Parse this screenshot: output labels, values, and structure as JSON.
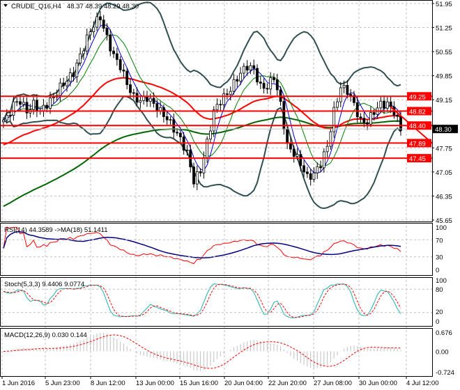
{
  "header": {
    "symbol": "CRUDE_Q16,H4",
    "ohlc": "48.37 48.39 48.29 48.30"
  },
  "colors": {
    "bull": "#000000",
    "bear": "#000000",
    "bands": "#2f4f4f",
    "fast_ma": "#0000cc",
    "mid_ma": "#008000",
    "slow_ma": "#ff0000",
    "long_ma": "#006400",
    "level": "#ff0000",
    "rsi": "#ff0000",
    "rsi_ma": "#000080",
    "stoch_main": "#20b2aa",
    "stoch_signal": "#ff0000",
    "macd_hist": "#c0c0c0",
    "macd_signal": "#ff0000"
  },
  "chart_data": [
    {
      "type": "candlestick",
      "title": "CRUDE_Q16,H4",
      "ylim": [
        45.65,
        51.95
      ],
      "y_ticks": [
        "51.95",
        "51.25",
        "50.55",
        "49.85",
        "49.15",
        "47.75",
        "47.05",
        "46.35",
        "45.65"
      ],
      "x_ticks": [
        "1 Jun 2016",
        "5 Jun 23:00",
        "8 Jun 12:00",
        "13 Jun 00:00",
        "15 Jun 16:00",
        "20 Jun 04:00",
        "22 Jun 20:00",
        "27 Jun 08:00",
        "30 Jun 00:00",
        "4 Jul 12:00"
      ],
      "closes": [
        48.61,
        49.02,
        49.12,
        48.81,
        49.02,
        48.81,
        49.02,
        49.22,
        49.52,
        49.72,
        49.93,
        50.43,
        50.94,
        51.34,
        51.55,
        50.94,
        50.43,
        50.13,
        49.62,
        49.22,
        49.12,
        49.22,
        49.02,
        48.81,
        48.61,
        48.31,
        48.0,
        47.6,
        46.79,
        47.09,
        47.9,
        48.81,
        49.12,
        49.32,
        49.62,
        49.93,
        50.13,
        50.03,
        49.52,
        49.52,
        49.83,
        49.02,
        47.8,
        47.6,
        47.29,
        46.89,
        46.99,
        47.29,
        47.8,
        48.81,
        49.52,
        49.42,
        49.02,
        48.51,
        48.51,
        48.81,
        49.02,
        49.02,
        48.81,
        48.3
      ],
      "levels": [
        "49.25",
        "48.82",
        "48.40",
        "47.89",
        "47.45"
      ],
      "current_price": "48.30",
      "grid": true
    },
    {
      "type": "line",
      "title": "RSI(14) 44.3589  ->MA(18) 51.1411",
      "ylim": [
        0,
        100
      ],
      "y_ticks": [
        "100",
        "70",
        "30",
        "0"
      ]
    },
    {
      "type": "line",
      "title": "Stoch(5,3,3) 9.4406 9.0774",
      "ylim": [
        0,
        100
      ],
      "y_ticks": [
        "100",
        "80",
        "20",
        "0"
      ]
    },
    {
      "type": "bar",
      "title": "MACD(12,26,9) 0.030 0.144",
      "ylim": [
        -0.724,
        0.676
      ],
      "y_ticks": [
        "0.676",
        "0.00",
        "-0.724"
      ]
    }
  ]
}
